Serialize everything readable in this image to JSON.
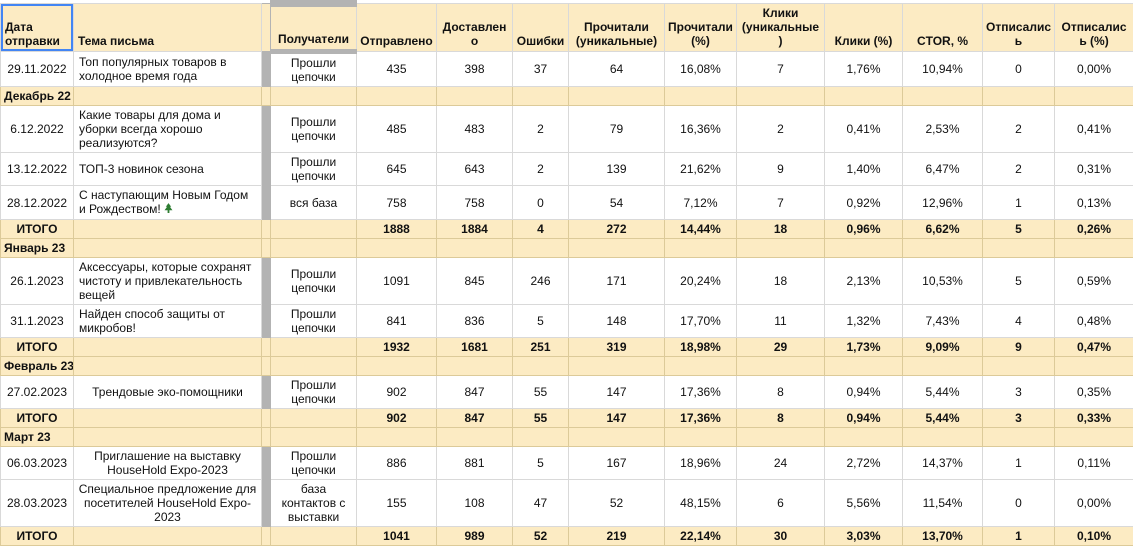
{
  "colors": {
    "band_beige": "#fcebc3",
    "selection_blue": "#4285f4",
    "divider_gray": "#b3b3b3",
    "grid_gray": "#d9d9d9"
  },
  "table": {
    "columns": [
      {
        "key": "date",
        "label": "Дата отправки"
      },
      {
        "key": "subject",
        "label": "Тема письма"
      },
      {
        "key": "recipients",
        "label": "Получатели"
      },
      {
        "key": "sent",
        "label": "Отправлено"
      },
      {
        "key": "delivered",
        "label": "Доставлено"
      },
      {
        "key": "errors",
        "label": "Ошибки"
      },
      {
        "key": "read_unique",
        "label": "Прочитали (уникальные)"
      },
      {
        "key": "read_pct",
        "label": "Прочитали (%)"
      },
      {
        "key": "clicks_unique",
        "label": "Клики (уникальные)"
      },
      {
        "key": "clicks_pct",
        "label": "Клики (%)"
      },
      {
        "key": "ctor_pct",
        "label": "CTOR, %"
      },
      {
        "key": "unsub",
        "label": "Отписались"
      },
      {
        "key": "unsub_pct",
        "label": "Отписались (%)"
      }
    ],
    "rows": [
      {
        "type": "data",
        "date": "29.11.2022",
        "subject": "Топ популярных товаров в холодное время года",
        "subject_align": "left",
        "recipients": "Прошли цепочки",
        "values": [
          "435",
          "398",
          "37",
          "64",
          "16,08%",
          "7",
          "1,76%",
          "10,94%",
          "0",
          "0,00%"
        ]
      },
      {
        "type": "month",
        "label": "Декабрь 22"
      },
      {
        "type": "data",
        "date": "6.12.2022",
        "subject": "Какие товары для дома и уборки всегда хорошо реализуются?",
        "subject_align": "left",
        "recipients": "Прошли цепочки",
        "values": [
          "485",
          "483",
          "2",
          "79",
          "16,36%",
          "2",
          "0,41%",
          "2,53%",
          "2",
          "0,41%"
        ]
      },
      {
        "type": "data",
        "date": "13.12.2022",
        "subject": "ТОП-3 новинок сезона",
        "subject_align": "left",
        "recipients": "Прошли цепочки",
        "values": [
          "645",
          "643",
          "2",
          "139",
          "21,62%",
          "9",
          "1,40%",
          "6,47%",
          "2",
          "0,31%"
        ]
      },
      {
        "type": "data",
        "date": "28.12.2022",
        "subject": "С наступающим Новым Годом и Рождеством!",
        "subject_icon": "christmas-tree-icon",
        "subject_align": "left",
        "recipients": "вся база",
        "values": [
          "758",
          "758",
          "0",
          "54",
          "7,12%",
          "7",
          "0,92%",
          "12,96%",
          "1",
          "0,13%"
        ]
      },
      {
        "type": "total",
        "label": "ИТОГО",
        "values": [
          "1888",
          "1884",
          "4",
          "272",
          "14,44%",
          "18",
          "0,96%",
          "6,62%",
          "5",
          "0,26%"
        ]
      },
      {
        "type": "month",
        "label": "Январь 23"
      },
      {
        "type": "data",
        "date": "26.1.2023",
        "subject": "Аксессуары, которые сохранят чистоту и привлекательность вещей",
        "subject_align": "left",
        "recipients": "Прошли цепочки",
        "values": [
          "1091",
          "845",
          "246",
          "171",
          "20,24%",
          "18",
          "2,13%",
          "10,53%",
          "5",
          "0,59%"
        ]
      },
      {
        "type": "data",
        "date": "31.1.2023",
        "subject": "Найден способ защиты от микробов!",
        "subject_align": "left",
        "recipients": "Прошли цепочки",
        "values": [
          "841",
          "836",
          "5",
          "148",
          "17,70%",
          "11",
          "1,32%",
          "7,43%",
          "4",
          "0,48%"
        ]
      },
      {
        "type": "total",
        "label": "ИТОГО",
        "values": [
          "1932",
          "1681",
          "251",
          "319",
          "18,98%",
          "29",
          "1,73%",
          "9,09%",
          "9",
          "0,47%"
        ]
      },
      {
        "type": "month",
        "label": "Февраль 23"
      },
      {
        "type": "data",
        "date": "27.02.2023",
        "subject": "Трендовые эко-помощники",
        "subject_align": "center",
        "recipients": "Прошли цепочки",
        "values": [
          "902",
          "847",
          "55",
          "147",
          "17,36%",
          "8",
          "0,94%",
          "5,44%",
          "3",
          "0,35%"
        ]
      },
      {
        "type": "total",
        "label": "ИТОГО",
        "values": [
          "902",
          "847",
          "55",
          "147",
          "17,36%",
          "8",
          "0,94%",
          "5,44%",
          "3",
          "0,33%"
        ]
      },
      {
        "type": "month",
        "label": "Март 23"
      },
      {
        "type": "data",
        "date": "06.03.2023",
        "subject": "Приглашение на выставку HouseHold Expo-2023",
        "subject_align": "center",
        "recipients": "Прошли цепочки",
        "values": [
          "886",
          "881",
          "5",
          "167",
          "18,96%",
          "24",
          "2,72%",
          "14,37%",
          "1",
          "0,11%"
        ]
      },
      {
        "type": "data",
        "date": "28.03.2023",
        "subject": "Специальное предложение для посетителей HouseHold Expo-2023",
        "subject_align": "center",
        "recipients": "база контактов с выставки",
        "values": [
          "155",
          "108",
          "47",
          "52",
          "48,15%",
          "6",
          "5,56%",
          "11,54%",
          "0",
          "0,00%"
        ]
      },
      {
        "type": "total",
        "label": "ИТОГО",
        "values": [
          "1041",
          "989",
          "52",
          "219",
          "22,14%",
          "30",
          "3,03%",
          "13,70%",
          "1",
          "0,10%"
        ]
      }
    ]
  }
}
